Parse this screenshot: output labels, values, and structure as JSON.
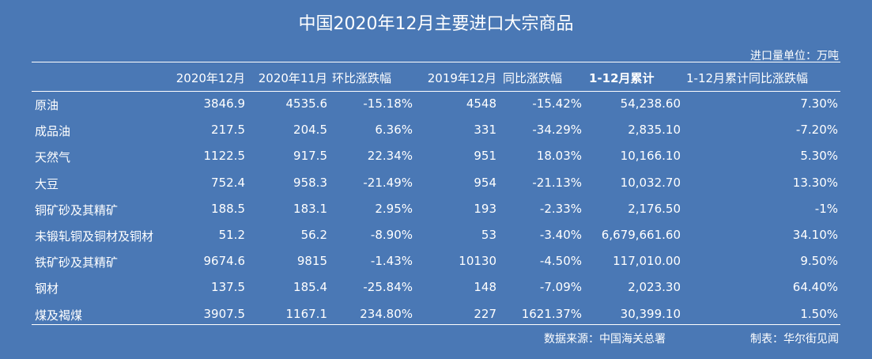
{
  "title": "中国2020年12月主要进口大宗商品",
  "unit_label": "进口量单位：万吨",
  "headers": [
    "2020年12月",
    "2020年11月",
    "环比涨跌幅",
    "2019年12月",
    "同比涨跌幅",
    "1-12月累计",
    "1-12月累计同比涨跌幅"
  ],
  "rows": [
    [
      "原油",
      "3846.9",
      "4535.6",
      "-15.18%",
      "4548",
      "-15.42%",
      "54,238.60",
      "7.30%"
    ],
    [
      "成品油",
      "217.5",
      "204.5",
      "6.36%",
      "331",
      "-34.29%",
      "2,835.10",
      "-7.20%"
    ],
    [
      "天然气",
      "1122.5",
      "917.5",
      "22.34%",
      "951",
      "18.03%",
      "10,166.10",
      "5.30%"
    ],
    [
      "大豆",
      "752.4",
      "958.3",
      "-21.49%",
      "954",
      "-21.13%",
      "10,032.70",
      "13.30%"
    ],
    [
      "铜矿砂及其精矿",
      "188.5",
      "183.1",
      "2.95%",
      "193",
      "-2.33%",
      "2,176.50",
      "-1%"
    ],
    [
      "未锻轧铜及铜材及铜材",
      "51.2",
      "56.2",
      "-8.90%",
      "53",
      "-3.40%",
      "6,679,661.60",
      "34.10%"
    ],
    [
      "铁矿砂及其精矿",
      "9674.6",
      "9815",
      "-1.43%",
      "10130",
      "-4.50%",
      "117,010.00",
      "9.50%"
    ],
    [
      "钢材",
      "137.5",
      "185.4",
      "-25.84%",
      "148",
      "-7.09%",
      "2,023.30",
      "64.40%"
    ],
    [
      "煤及褐煤",
      "3907.5",
      "1167.1",
      "234.80%",
      "227",
      "1621.37%",
      "30,399.10",
      "1.50%"
    ]
  ],
  "source": "数据来源：中国海关总署",
  "credit": "制表：华尔街见闻",
  "chart_data": {
    "type": "table",
    "title": "中国2020年12月主要进口大宗商品",
    "unit": "进口量单位：万吨",
    "columns": [
      "",
      "2020年12月",
      "2020年11月",
      "环比涨跌幅",
      "2019年12月",
      "同比涨跌幅",
      "1-12月累计",
      "1-12月累计同比涨跌幅"
    ],
    "categories": [
      "原油",
      "成品油",
      "天然气",
      "大豆",
      "铜矿砂及其精矿",
      "未锻轧铜及铜材及铜材",
      "铁矿砂及其精矿",
      "钢材",
      "煤及褐煤"
    ],
    "series": [
      {
        "name": "2020年12月",
        "values": [
          3846.9,
          217.5,
          1122.5,
          752.4,
          188.5,
          51.2,
          9674.6,
          137.5,
          3907.5
        ]
      },
      {
        "name": "2020年11月",
        "values": [
          4535.6,
          204.5,
          917.5,
          958.3,
          183.1,
          56.2,
          9815,
          185.4,
          1167.1
        ]
      },
      {
        "name": "环比涨跌幅",
        "values": [
          -15.18,
          6.36,
          22.34,
          -21.49,
          2.95,
          -8.9,
          -1.43,
          -25.84,
          234.8
        ]
      },
      {
        "name": "2019年12月",
        "values": [
          4548,
          331,
          951,
          954,
          193,
          53,
          10130,
          148,
          227
        ]
      },
      {
        "name": "同比涨跌幅",
        "values": [
          -15.42,
          -34.29,
          18.03,
          -21.13,
          -2.33,
          -3.4,
          -4.5,
          -7.09,
          1621.37
        ]
      },
      {
        "name": "1-12月累计",
        "values": [
          54238.6,
          2835.1,
          10166.1,
          10032.7,
          2176.5,
          6679661.6,
          117010.0,
          2023.3,
          30399.1
        ]
      },
      {
        "name": "1-12月累计同比涨跌幅",
        "values": [
          7.3,
          -7.2,
          5.3,
          13.3,
          -1,
          34.1,
          9.5,
          64.4,
          1.5
        ]
      }
    ]
  }
}
